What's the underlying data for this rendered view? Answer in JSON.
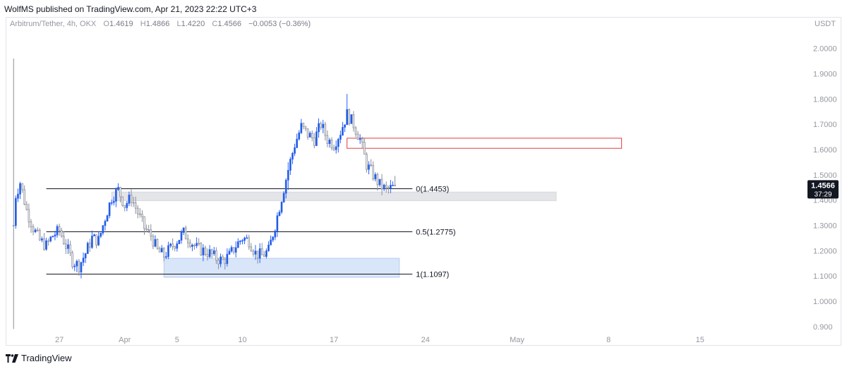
{
  "header": {
    "published_text": "WolfMS published on TradingView.com, Apr 21, 2023 22:22 UTC+3"
  },
  "legend": {
    "symbol": "Arbitrum/Tether, 4h, OKX",
    "open_label": "O",
    "open": "1.4619",
    "high_label": "H",
    "high": "1.4866",
    "low_label": "L",
    "low": "1.4220",
    "close_label": "C",
    "close": "1.4566",
    "change": "−0.0053 (−0.36%)"
  },
  "footer": {
    "brand": "TradingView"
  },
  "colors": {
    "up": "#2962ff",
    "up_body": "#1e5bbf",
    "down": "#8a8f99",
    "fib_line": "#131722",
    "supply_box": "#e03c3c",
    "demand_box_fill": "#cfe0f7",
    "gray_zone_fill": "#e4e5e8",
    "price_badge": "#131722"
  },
  "chart_data": {
    "type": "candlestick",
    "currency": "USDT",
    "y_ticks": [
      "2.0000",
      "1.9000",
      "1.8000",
      "1.7000",
      "1.6000",
      "1.5000",
      "1.4000",
      "1.3000",
      "1.2000",
      "1.1000",
      "1.0000",
      "0.900"
    ],
    "y_tick_values": [
      2.0,
      1.9,
      1.8,
      1.7,
      1.6,
      1.5,
      1.4,
      1.3,
      1.2,
      1.1,
      1.0,
      0.9
    ],
    "ylim": [
      0.88,
      2.08
    ],
    "x_ticks": [
      "27",
      "Apr",
      "5",
      "10",
      "17",
      "24",
      "May",
      "8",
      "15"
    ],
    "x_tick_dates": [
      "2023-03-27",
      "2023-04-01",
      "2023-04-05",
      "2023-04-10",
      "2023-04-17",
      "2023-04-24",
      "2023-05-01",
      "2023-05-08",
      "2023-05-15"
    ],
    "x_range": [
      "2023-03-23",
      "2023-05-23"
    ],
    "current_price": {
      "value": "1.4566",
      "countdown": "37:29"
    },
    "fib_levels": [
      {
        "label": "0(1.4453)",
        "value": 1.4453
      },
      {
        "label": "0.5(1.2775)",
        "value": 1.2775
      },
      {
        "label": "1(1.1097)",
        "value": 1.1097
      }
    ],
    "fib_start": "2023-03-26",
    "fib_end": "2023-04-23",
    "zones": [
      {
        "kind": "supply",
        "from": "2023-04-18",
        "to": "2023-05-09",
        "top": 1.645,
        "bottom": 1.605
      },
      {
        "kind": "gray",
        "from": "2023-03-31",
        "to": "2023-05-04",
        "top": 1.432,
        "bottom": 1.398
      },
      {
        "kind": "demand",
        "from": "2023-04-04",
        "to": "2023-04-22",
        "top": 1.17,
        "bottom": 1.095
      }
    ],
    "anchors": [
      [
        "2023-03-23T12:00",
        1.3
      ],
      [
        "2023-03-23T16:00",
        1.42
      ],
      [
        "2023-03-24",
        1.47
      ],
      [
        "2023-03-24T12:00",
        1.36
      ],
      [
        "2023-03-25",
        1.29
      ],
      [
        "2023-03-25T12:00",
        1.24
      ],
      [
        "2023-03-26",
        1.22
      ],
      [
        "2023-03-26T12:00",
        1.26
      ],
      [
        "2023-03-27",
        1.28
      ],
      [
        "2023-03-27T12:00",
        1.22
      ],
      [
        "2023-03-28",
        1.16
      ],
      [
        "2023-03-28T12:00",
        1.14
      ],
      [
        "2023-03-29",
        1.19
      ],
      [
        "2023-03-29T12:00",
        1.25
      ],
      [
        "2023-03-30",
        1.24
      ],
      [
        "2023-03-30T12:00",
        1.33
      ],
      [
        "2023-03-31",
        1.41
      ],
      [
        "2023-03-31T12:00",
        1.44
      ],
      [
        "2023-04-01",
        1.38
      ],
      [
        "2023-04-01T12:00",
        1.41
      ],
      [
        "2023-04-02",
        1.35
      ],
      [
        "2023-04-02T12:00",
        1.29
      ],
      [
        "2023-04-03",
        1.26
      ],
      [
        "2023-04-03T12:00",
        1.2
      ],
      [
        "2023-04-04",
        1.18
      ],
      [
        "2023-04-04T12:00",
        1.21
      ],
      [
        "2023-04-05",
        1.24
      ],
      [
        "2023-04-05T12:00",
        1.27
      ],
      [
        "2023-04-06",
        1.24
      ],
      [
        "2023-04-06T12:00",
        1.21
      ],
      [
        "2023-04-07",
        1.2
      ],
      [
        "2023-04-07T12:00",
        1.19
      ],
      [
        "2023-04-08",
        1.17
      ],
      [
        "2023-04-08T12:00",
        1.16
      ],
      [
        "2023-04-09",
        1.18
      ],
      [
        "2023-04-09T12:00",
        1.22
      ],
      [
        "2023-04-10",
        1.25
      ],
      [
        "2023-04-10T12:00",
        1.24
      ],
      [
        "2023-04-11",
        1.19
      ],
      [
        "2023-04-11T12:00",
        1.18
      ],
      [
        "2023-04-12",
        1.2
      ],
      [
        "2023-04-12T12:00",
        1.3
      ],
      [
        "2023-04-13",
        1.41
      ],
      [
        "2023-04-13T12:00",
        1.52
      ],
      [
        "2023-04-14",
        1.62
      ],
      [
        "2023-04-14T12:00",
        1.69
      ],
      [
        "2023-04-15",
        1.66
      ],
      [
        "2023-04-15T12:00",
        1.64
      ],
      [
        "2023-04-16",
        1.7
      ],
      [
        "2023-04-16T12:00",
        1.64
      ],
      [
        "2023-04-17",
        1.62
      ],
      [
        "2023-04-17T12:00",
        1.67
      ],
      [
        "2023-04-18",
        1.74
      ],
      [
        "2023-04-18T12:00",
        1.7
      ],
      [
        "2023-04-19",
        1.64
      ],
      [
        "2023-04-19T12:00",
        1.54
      ],
      [
        "2023-04-20",
        1.5
      ],
      [
        "2023-04-20T12:00",
        1.46
      ],
      [
        "2023-04-21",
        1.44
      ],
      [
        "2023-04-21T12:00",
        1.45
      ],
      [
        "2023-04-21T16:00",
        1.4566
      ]
    ],
    "spikes": [
      {
        "time": "2023-03-23T12:00",
        "high": 1.96,
        "low": 0.89
      },
      {
        "time": "2023-04-18",
        "high": 1.82,
        "low": 1.7
      },
      {
        "time": "2023-04-13T12:00",
        "high": 1.55,
        "low": 1.44
      }
    ]
  }
}
